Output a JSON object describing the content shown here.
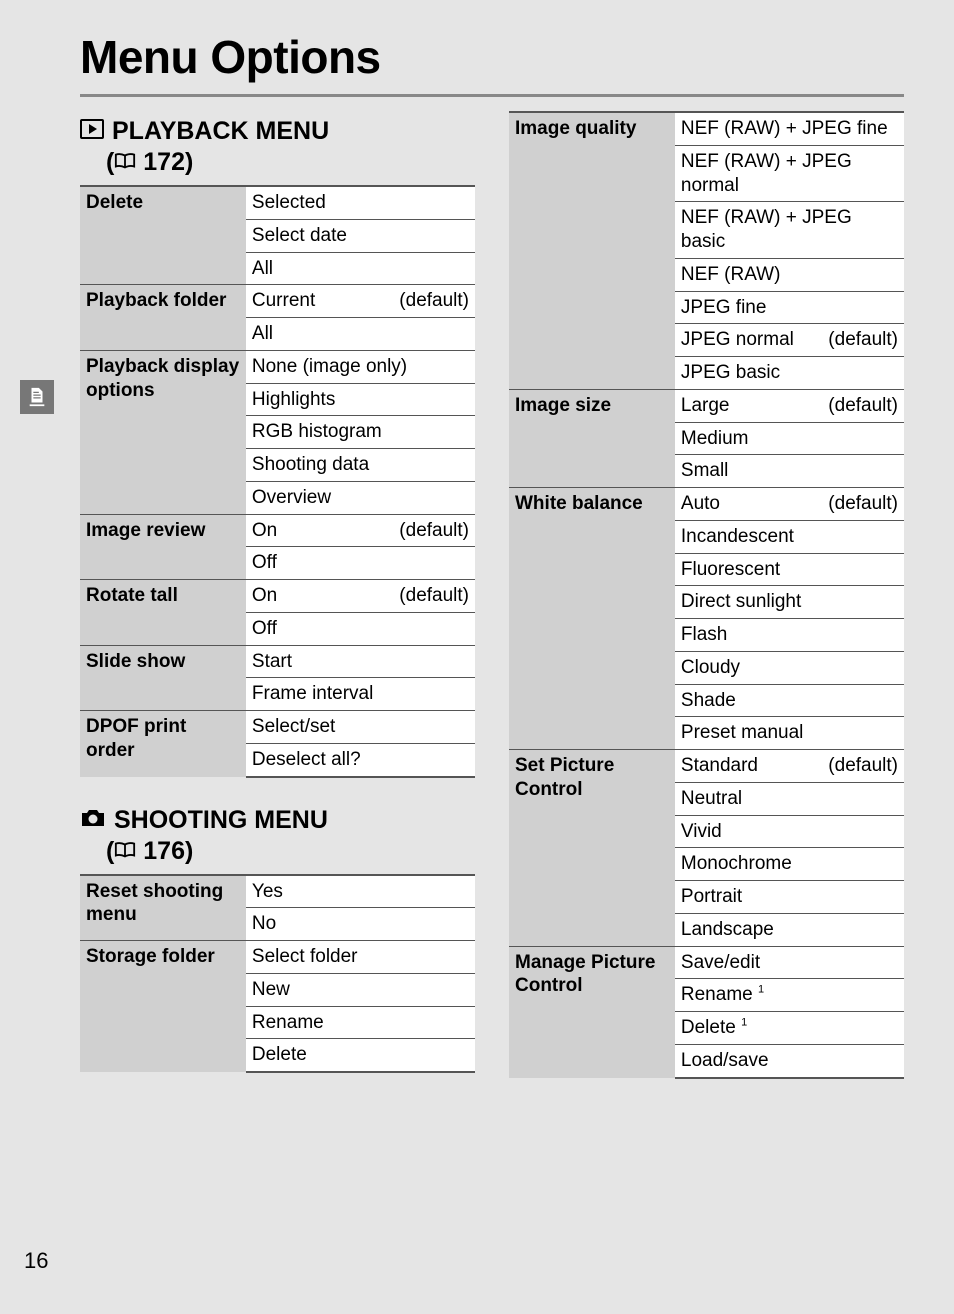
{
  "title": "Menu Options",
  "page_number": "16",
  "sections": {
    "playback": {
      "heading": "PLAYBACK MENU",
      "ref_icon": "book",
      "ref_page": "172"
    },
    "shooting": {
      "heading": "SHOOTING MENU",
      "ref_icon": "book",
      "ref_page": "176"
    }
  },
  "tables": {
    "playback": [
      {
        "label": "Delete",
        "options": [
          {
            "text": "Selected"
          },
          {
            "text": "Select date"
          },
          {
            "text": "All"
          }
        ]
      },
      {
        "label": "Playback folder",
        "options": [
          {
            "text": "Current",
            "default": true
          },
          {
            "text": "All"
          }
        ]
      },
      {
        "label": "Playback display options",
        "options": [
          {
            "text": "None (image only)"
          },
          {
            "text": "Highlights"
          },
          {
            "text": "RGB histogram"
          },
          {
            "text": "Shooting data"
          },
          {
            "text": "Overview"
          }
        ]
      },
      {
        "label": "Image review",
        "options": [
          {
            "text": "On",
            "default": true
          },
          {
            "text": "Off"
          }
        ]
      },
      {
        "label": "Rotate tall",
        "options": [
          {
            "text": "On",
            "default": true
          },
          {
            "text": "Off"
          }
        ]
      },
      {
        "label": "Slide show",
        "options": [
          {
            "text": "Start"
          },
          {
            "text": "Frame interval"
          }
        ]
      },
      {
        "label": "DPOF print order",
        "options": [
          {
            "text": "Select/set"
          },
          {
            "text": "Deselect all?"
          }
        ]
      }
    ],
    "shooting_left": [
      {
        "label": "Reset shooting menu",
        "options": [
          {
            "text": "Yes"
          },
          {
            "text": "No"
          }
        ]
      },
      {
        "label": "Storage folder",
        "options": [
          {
            "text": "Select folder"
          },
          {
            "text": "New"
          },
          {
            "text": "Rename"
          },
          {
            "text": "Delete"
          }
        ]
      }
    ],
    "shooting_right": [
      {
        "label": "Image quality",
        "options": [
          {
            "text": "NEF (RAW) + JPEG fine"
          },
          {
            "text": "NEF (RAW) + JPEG normal"
          },
          {
            "text": "NEF (RAW) + JPEG basic"
          },
          {
            "text": "NEF (RAW)"
          },
          {
            "text": "JPEG fine"
          },
          {
            "text": "JPEG normal",
            "default": true
          },
          {
            "text": "JPEG basic"
          }
        ]
      },
      {
        "label": "Image size",
        "options": [
          {
            "text": "Large",
            "default": true
          },
          {
            "text": "Medium"
          },
          {
            "text": "Small"
          }
        ]
      },
      {
        "label": "White balance",
        "options": [
          {
            "text": "Auto",
            "default": true
          },
          {
            "text": "Incandescent"
          },
          {
            "text": "Fluorescent"
          },
          {
            "text": "Direct sunlight"
          },
          {
            "text": "Flash"
          },
          {
            "text": "Cloudy"
          },
          {
            "text": "Shade"
          },
          {
            "text": "Preset manual"
          }
        ]
      },
      {
        "label": "Set Picture Control",
        "options": [
          {
            "text": "Standard",
            "default": true
          },
          {
            "text": "Neutral"
          },
          {
            "text": "Vivid"
          },
          {
            "text": "Monochrome"
          },
          {
            "text": "Portrait"
          },
          {
            "text": "Landscape"
          }
        ]
      },
      {
        "label": "Manage Picture Control",
        "options": [
          {
            "text": "Save/edit"
          },
          {
            "text": "Rename",
            "sup": "1"
          },
          {
            "text": "Delete",
            "sup": "1"
          },
          {
            "text": "Load/save"
          }
        ]
      }
    ]
  },
  "default_label": "(default)"
}
